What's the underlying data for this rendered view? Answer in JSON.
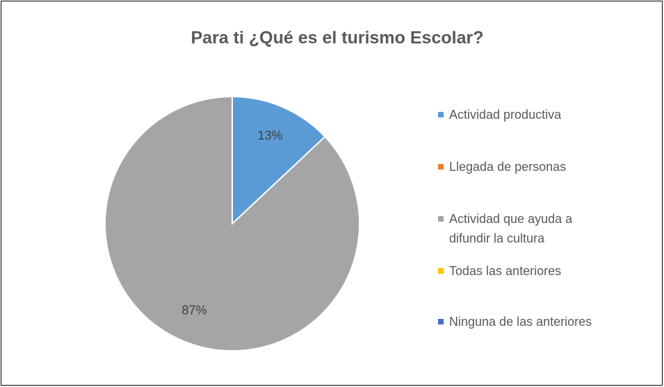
{
  "chart_data": {
    "type": "pie",
    "title": "Para ti ¿Qué es el turismo Escolar?",
    "categories": [
      "Actividad productiva",
      "Llegada de personas",
      "Actividad que ayuda a difundir la cultura",
      "Todas las anteriores",
      "Ninguna de las anteriores"
    ],
    "values": [
      13,
      0,
      87,
      0,
      0
    ],
    "value_labels": [
      "13%",
      null,
      "87%",
      null,
      null
    ],
    "colors": [
      "#5b9bd5",
      "#ed7d31",
      "#a5a5a5",
      "#ffc000",
      "#4472c4"
    ],
    "legend": "right"
  }
}
